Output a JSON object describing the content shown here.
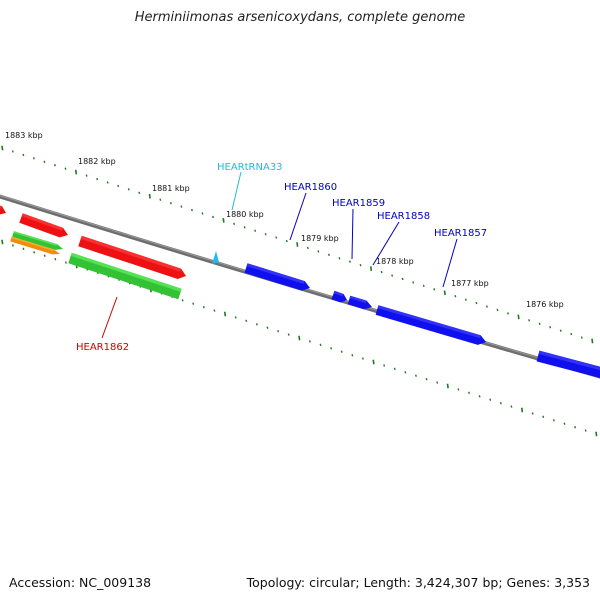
{
  "header": {
    "title": "Herminiimonas arsenicoxydans, complete genome"
  },
  "footer": {
    "accession": "Accession: NC_009138",
    "topology": "Topology: circular; Length: 3,424,307 bp; Genes: 3,353"
  },
  "colors": {
    "backbone": "#7a7a7a",
    "tick": "#1e7a1e",
    "forward_red": "#ee1111",
    "reverse_green": "#33c233",
    "reverse_orange": "#f08c0a",
    "cds_blue": "#1010ee",
    "trna_cyan": "#22bbee",
    "label_red": "#cc0000",
    "label_blue": "#0000cc",
    "label_cyan": "#22bbdd"
  },
  "ruler": {
    "labels": [
      "1883 kbp",
      "1882 kbp",
      "1881 kbp",
      "1880 kbp",
      "1879 kbp",
      "1878 kbp",
      "1877 kbp",
      "1876 kbp"
    ]
  },
  "genes": [
    {
      "label": "HEARtRNA33",
      "type": "tRNA"
    },
    {
      "label": "HEAR1860",
      "type": "CDS"
    },
    {
      "label": "HEAR1859",
      "type": "CDS"
    },
    {
      "label": "HEAR1858",
      "type": "CDS"
    },
    {
      "label": "HEAR1857",
      "type": "CDS"
    },
    {
      "label": "HEAR1862",
      "type": "CDS"
    }
  ]
}
